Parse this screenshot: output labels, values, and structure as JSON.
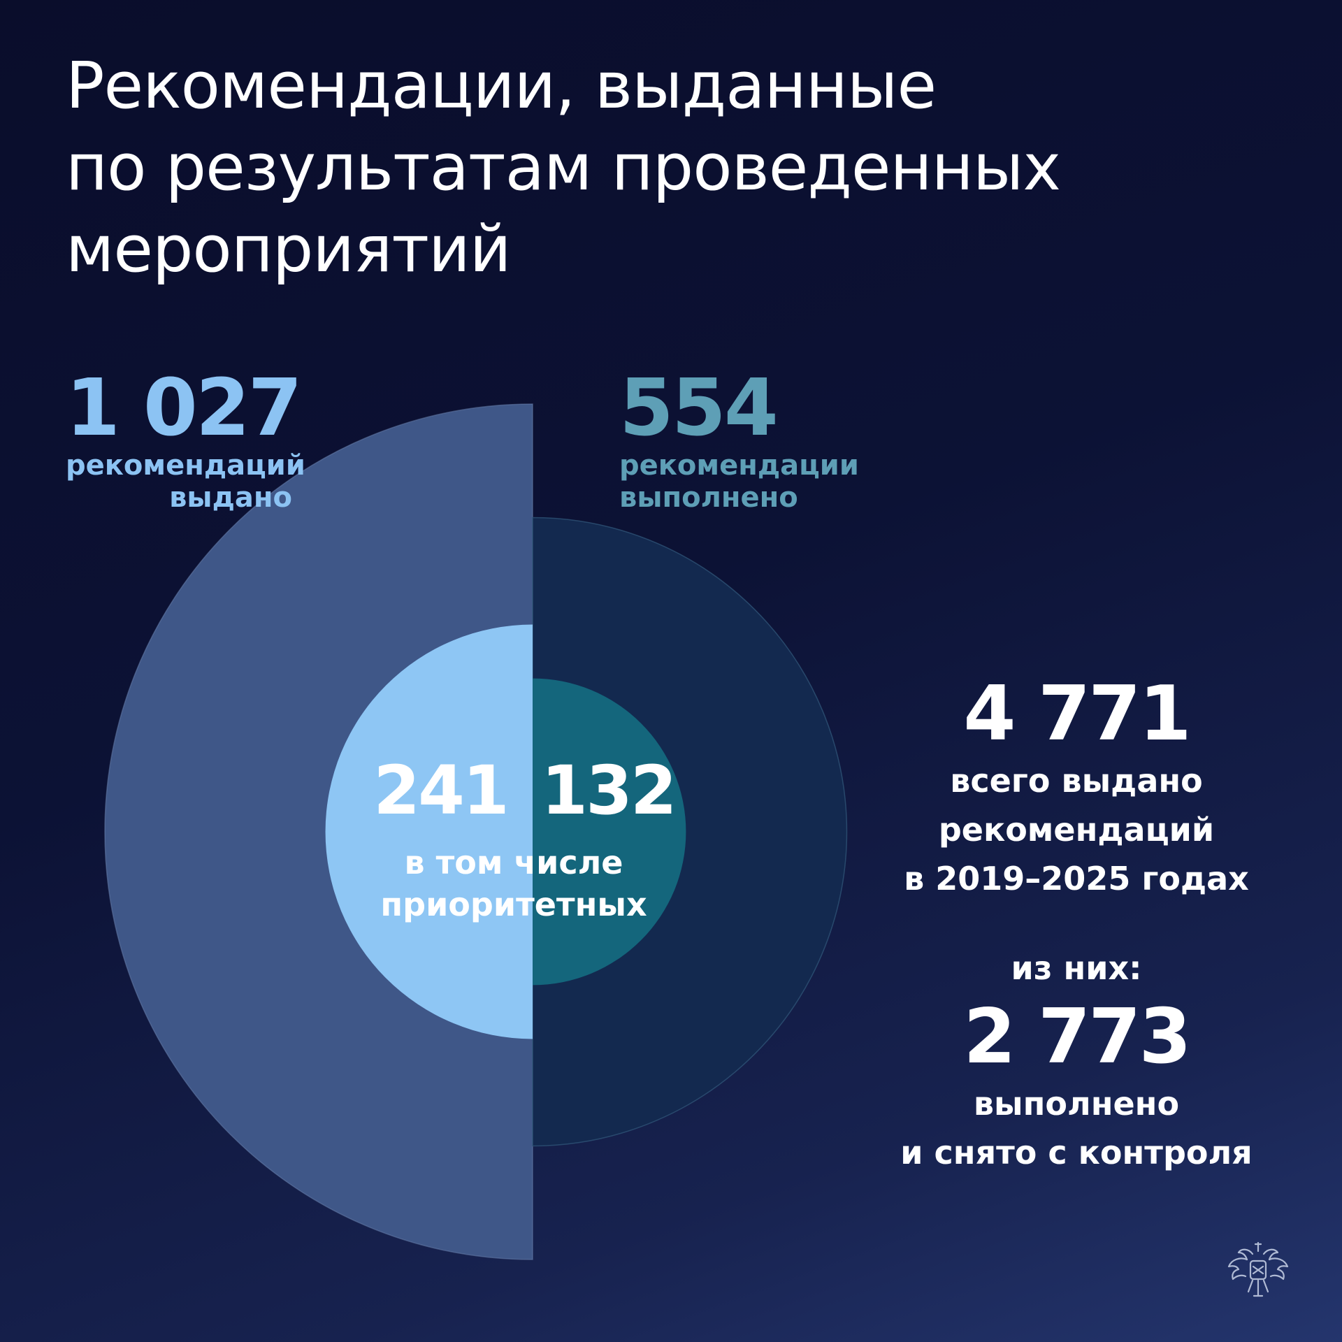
{
  "header": {
    "title_lines": [
      "Рекомендации, выданные",
      "по результатам проведенных",
      "мероприятий"
    ]
  },
  "colors": {
    "issued_outer": "#3f5788",
    "issued_inner": "#8ec6f4",
    "done_outer": "#13294f",
    "done_inner": "#14667c",
    "issued_text": "#8cc3f3",
    "done_text": "#5e9fb6"
  },
  "left_stat": {
    "value": "1 027",
    "label_lines": [
      "рекомендаций",
      "выдано"
    ]
  },
  "mid_stat": {
    "value": "554",
    "label_lines": [
      "рекомендации",
      "выполнено"
    ]
  },
  "center": {
    "value_left": "241",
    "value_right": "132",
    "label_lines": [
      "в том числе",
      "приоритетных"
    ]
  },
  "total": {
    "value": "4 771",
    "label_lines": [
      "всего выдано",
      "рекомендаций",
      "в 2019–2025 годах"
    ],
    "of_them": "из них:",
    "done_value": "2 773",
    "done_lines": [
      "выполнено",
      "и снято с контроля"
    ]
  },
  "emblem_icon": "double-headed-eagle-icon",
  "chart_data": {
    "type": "pie",
    "title": "",
    "series": [
      {
        "name": "рекомендаций выдано",
        "values": [
          1027,
          241
        ]
      },
      {
        "name": "рекомендации выполнено",
        "values": [
          554,
          132
        ]
      }
    ],
    "categories": [
      "всего",
      "в том числе приоритетных"
    ],
    "total_issued_2019_2025": 4771,
    "total_completed": 2773
  }
}
